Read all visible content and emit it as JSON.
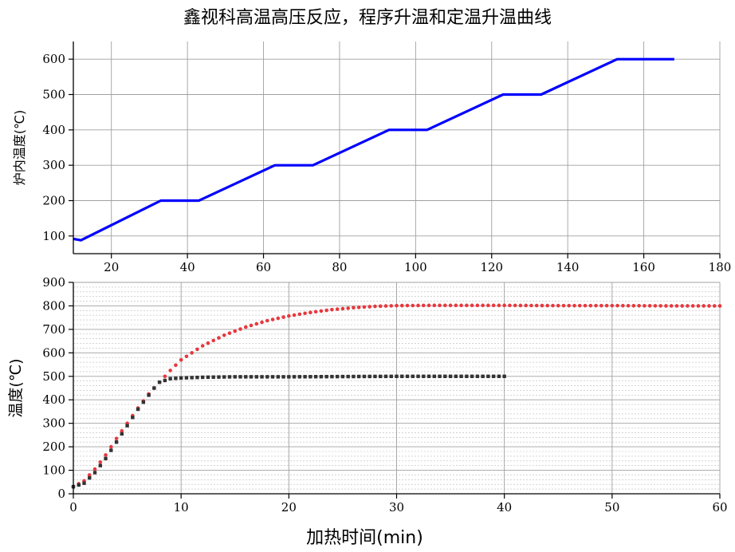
{
  "title": "鑫视科高温高压反应，程序升温和定温升温曲线",
  "chart_data": [
    {
      "type": "line",
      "xlabel": "",
      "ylabel": "炉内温度(℃)",
      "xlim": [
        10,
        180
      ],
      "ylim": [
        50,
        650
      ],
      "xticks": [
        20,
        40,
        60,
        80,
        100,
        120,
        140,
        160,
        180
      ],
      "yticks": [
        100,
        200,
        300,
        400,
        500,
        600
      ],
      "grid": true,
      "series": [
        {
          "color": "#0000ff",
          "x": [
            10,
            12,
            33,
            43,
            63,
            73,
            93,
            103,
            123,
            133,
            153,
            168
          ],
          "y": [
            92,
            88,
            200,
            200,
            300,
            300,
            400,
            400,
            500,
            500,
            600,
            600
          ]
        }
      ]
    },
    {
      "type": "scatter",
      "xlabel": "加热时间(min)",
      "ylabel": "温度(℃)",
      "xlim": [
        0,
        60
      ],
      "ylim": [
        0,
        900
      ],
      "xticks": [
        0,
        10,
        20,
        30,
        40,
        50,
        60
      ],
      "yticks": [
        0,
        100,
        200,
        300,
        400,
        500,
        600,
        700,
        800,
        900
      ],
      "grid": true,
      "series": [
        {
          "color": "#e8383d",
          "x": [
            0,
            1,
            2,
            3,
            4,
            5,
            6,
            7,
            8,
            9,
            10,
            12,
            14,
            16,
            18,
            20,
            22,
            24,
            26,
            28,
            30,
            33,
            36,
            40,
            45,
            50,
            55,
            60
          ],
          "y": [
            30,
            55,
            105,
            165,
            235,
            300,
            365,
            425,
            475,
            525,
            570,
            630,
            675,
            710,
            737,
            757,
            772,
            784,
            792,
            798,
            801,
            802,
            802,
            802,
            801,
            801,
            800,
            800
          ]
        },
        {
          "color": "#333333",
          "x": [
            0,
            1,
            2,
            3,
            4,
            5,
            6,
            7,
            7.5,
            8,
            9,
            10,
            12,
            15,
            20,
            25,
            30,
            35,
            40
          ],
          "y": [
            30,
            45,
            90,
            150,
            220,
            290,
            360,
            420,
            450,
            475,
            490,
            493,
            496,
            498,
            498,
            499,
            500,
            500,
            500
          ]
        }
      ]
    }
  ]
}
